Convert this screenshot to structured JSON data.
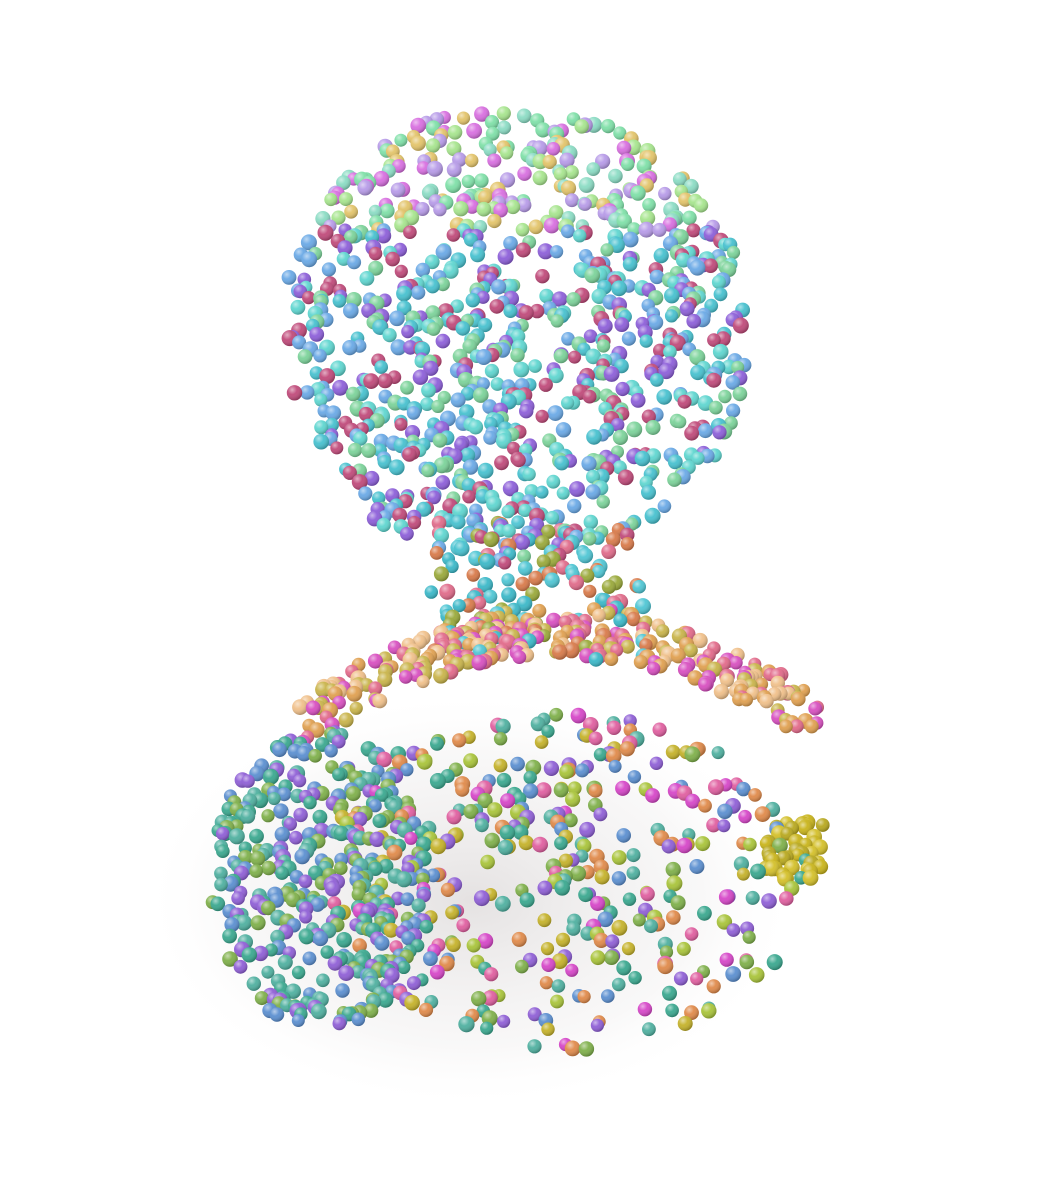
{
  "scene": {
    "subject": "point-cloud-bust",
    "background_color": "#ffffff",
    "shadow_color": "#d9d6d6",
    "palette": {
      "head_top": [
        "#e3c46a",
        "#d86fe0",
        "#a7e58e",
        "#7fe0a8",
        "#8bdcc4",
        "#b79be8"
      ],
      "head_face": [
        "#5fd6d0",
        "#47c1cf",
        "#6aa9e6",
        "#7cd39a",
        "#8d5fd9",
        "#c04a7a"
      ],
      "neck": [
        "#4fc6d4",
        "#3bb8c8",
        "#e06b8a",
        "#d87a4a",
        "#9aa93a"
      ],
      "shoulders_left": [
        "#3aa88f",
        "#4fb0a0",
        "#5b8fd0",
        "#8f5fd6",
        "#7fb04a"
      ],
      "shoulders_right": [
        "#d646c8",
        "#e05fa0",
        "#c5b22a",
        "#a9c43a",
        "#e08a4a"
      ],
      "collar": [
        "#e26a8a",
        "#e0a050",
        "#d84fc0",
        "#c9b44a",
        "#f0c08a"
      ]
    }
  }
}
